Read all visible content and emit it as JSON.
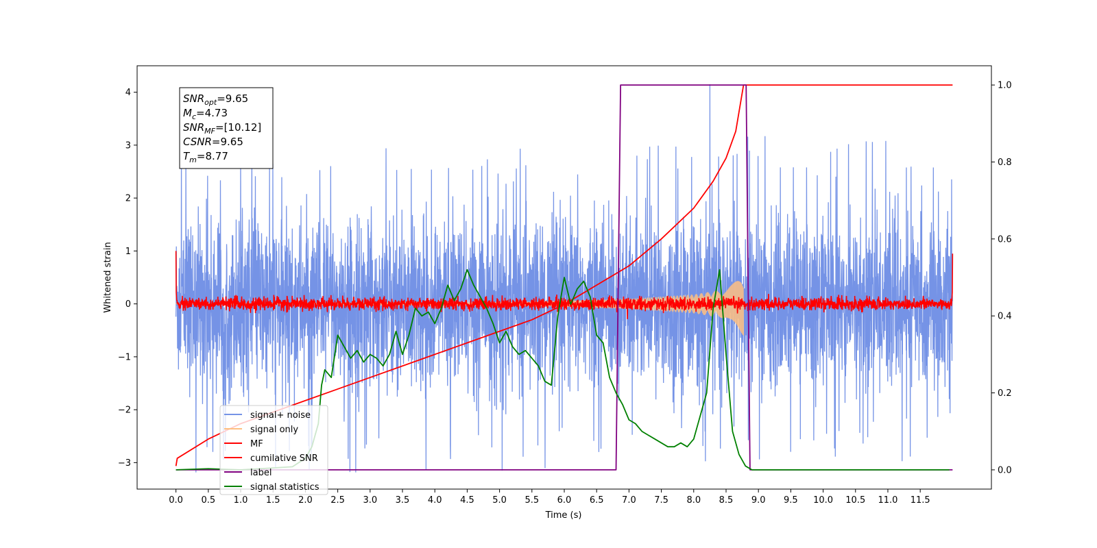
{
  "chart_data": {
    "type": "line",
    "xlabel": "Time (s)",
    "ylabel": "Whitened strain",
    "xlim": [
      -0.6,
      12.6
    ],
    "ylim": [
      -3.5,
      4.5
    ],
    "y2lim": [
      -0.05,
      1.05
    ],
    "x_ticks": [
      0.0,
      0.5,
      1.0,
      1.5,
      2.0,
      2.5,
      3.0,
      3.5,
      4.0,
      4.5,
      5.0,
      5.5,
      6.0,
      6.5,
      7.0,
      7.5,
      8.0,
      8.5,
      9.0,
      9.5,
      10.0,
      10.5,
      11.0,
      11.5
    ],
    "x_tick_labels": [
      "0.0",
      "0.5",
      "1.0",
      "1.5",
      "2.0",
      "2.5",
      "3.0",
      "3.5",
      "4.0",
      "4.5",
      "5.0",
      "5.5",
      "6.0",
      "6.5",
      "7.0",
      "7.5",
      "8.0",
      "8.5",
      "9.0",
      "9.5",
      "10.0",
      "10.5",
      "11.0",
      "11.5"
    ],
    "y_ticks": [
      -3,
      -2,
      -1,
      0,
      1,
      2,
      3,
      4
    ],
    "y_tick_labels": [
      "−3",
      "−2",
      "−1",
      "0",
      "1",
      "2",
      "3",
      "4"
    ],
    "y2_ticks": [
      0.0,
      0.2,
      0.4,
      0.6,
      0.8,
      1.0
    ],
    "y2_tick_labels": [
      "0.0",
      "0.2",
      "0.4",
      "0.6",
      "0.8",
      "1.0"
    ],
    "grid": false,
    "legend_placement": "lower-left",
    "annotation": [
      {
        "sym": "SNR",
        "sub": "opt",
        "value": "=9.65"
      },
      {
        "sym": "M",
        "sub": "c",
        "value": "=4.73"
      },
      {
        "sym": "SNR",
        "sub": "MF",
        "value": "=[10.12]"
      },
      {
        "sym": "CSNR",
        "sub": "",
        "value": "=9.65"
      },
      {
        "sym": "T",
        "sub": "m",
        "value": "=8.77"
      }
    ],
    "series": [
      {
        "name": "signal+ noise",
        "color": "#7593e6",
        "axis": "left",
        "kind": "noise",
        "x_range": [
          0.0,
          12.0
        ],
        "samples": 4000,
        "envelope": 1.9,
        "peak_max": 4.15,
        "trough_min": -3.2
      },
      {
        "name": "signal only",
        "color": "#ffbf80",
        "axis": "left",
        "kind": "chirp",
        "x_range": [
          0.0,
          8.77
        ],
        "amplitude_points": {
          "x": [
            0.0,
            5.0,
            6.0,
            7.0,
            8.0,
            8.5,
            8.77
          ],
          "y": [
            0.01,
            0.03,
            0.06,
            0.1,
            0.18,
            0.28,
            0.6
          ]
        }
      },
      {
        "name": "MF",
        "color": "#ff0000",
        "axis": "left",
        "kind": "noise",
        "x_range": [
          0.0,
          12.0
        ],
        "samples": 3000,
        "envelope": 0.1,
        "start_value": 1.0,
        "end_value": 0.95
      },
      {
        "name": "cumilative SNR",
        "color": "#ff0000",
        "axis": "right",
        "x": [
          0.0,
          0.02,
          0.5,
          1.0,
          1.5,
          2.0,
          2.5,
          3.0,
          3.5,
          4.0,
          4.5,
          5.0,
          5.5,
          6.0,
          6.5,
          7.0,
          7.5,
          8.0,
          8.3,
          8.5,
          8.65,
          8.77,
          12.0
        ],
        "y": [
          0.01,
          0.03,
          0.08,
          0.12,
          0.15,
          0.18,
          0.21,
          0.24,
          0.27,
          0.3,
          0.33,
          0.36,
          0.39,
          0.43,
          0.48,
          0.53,
          0.6,
          0.68,
          0.75,
          0.81,
          0.88,
          1.0,
          1.0
        ]
      },
      {
        "name": "label",
        "color": "#800080",
        "axis": "right",
        "x": [
          0.0,
          6.8,
          6.87,
          8.81,
          8.87,
          12.0
        ],
        "y": [
          0.0,
          0.0,
          1.0,
          1.0,
          0.0,
          0.0
        ]
      },
      {
        "name": "signal statistics",
        "color": "#008000",
        "axis": "right",
        "x": [
          0.0,
          0.5,
          1.0,
          1.5,
          1.8,
          2.0,
          2.1,
          2.2,
          2.25,
          2.3,
          2.4,
          2.5,
          2.6,
          2.7,
          2.8,
          2.9,
          3.0,
          3.1,
          3.2,
          3.3,
          3.4,
          3.5,
          3.6,
          3.7,
          3.8,
          3.9,
          4.0,
          4.1,
          4.2,
          4.3,
          4.4,
          4.5,
          4.6,
          4.7,
          4.8,
          4.9,
          5.0,
          5.1,
          5.2,
          5.3,
          5.4,
          5.5,
          5.6,
          5.7,
          5.8,
          5.9,
          6.0,
          6.1,
          6.2,
          6.3,
          6.4,
          6.5,
          6.6,
          6.7,
          6.8,
          6.9,
          7.0,
          7.1,
          7.2,
          7.3,
          7.4,
          7.5,
          7.6,
          7.7,
          7.8,
          7.9,
          8.0,
          8.1,
          8.2,
          8.3,
          8.4,
          8.5,
          8.6,
          8.7,
          8.8,
          8.9,
          9.0,
          9.5,
          10.0,
          10.5,
          11.0,
          11.5,
          11.95
        ],
        "y": [
          0.0,
          0.003,
          0.0,
          0.005,
          0.008,
          0.03,
          0.06,
          0.12,
          0.22,
          0.26,
          0.24,
          0.35,
          0.32,
          0.29,
          0.31,
          0.28,
          0.3,
          0.29,
          0.27,
          0.3,
          0.36,
          0.3,
          0.35,
          0.42,
          0.4,
          0.41,
          0.38,
          0.42,
          0.48,
          0.44,
          0.47,
          0.52,
          0.48,
          0.45,
          0.42,
          0.38,
          0.33,
          0.36,
          0.32,
          0.3,
          0.31,
          0.29,
          0.27,
          0.23,
          0.22,
          0.4,
          0.5,
          0.43,
          0.47,
          0.49,
          0.45,
          0.35,
          0.33,
          0.24,
          0.2,
          0.17,
          0.13,
          0.12,
          0.1,
          0.09,
          0.08,
          0.07,
          0.06,
          0.06,
          0.07,
          0.06,
          0.08,
          0.14,
          0.2,
          0.42,
          0.52,
          0.3,
          0.1,
          0.04,
          0.01,
          0.0,
          0.0,
          0.0,
          0.0,
          0.0,
          0.0,
          0.0,
          0.0
        ]
      }
    ]
  }
}
